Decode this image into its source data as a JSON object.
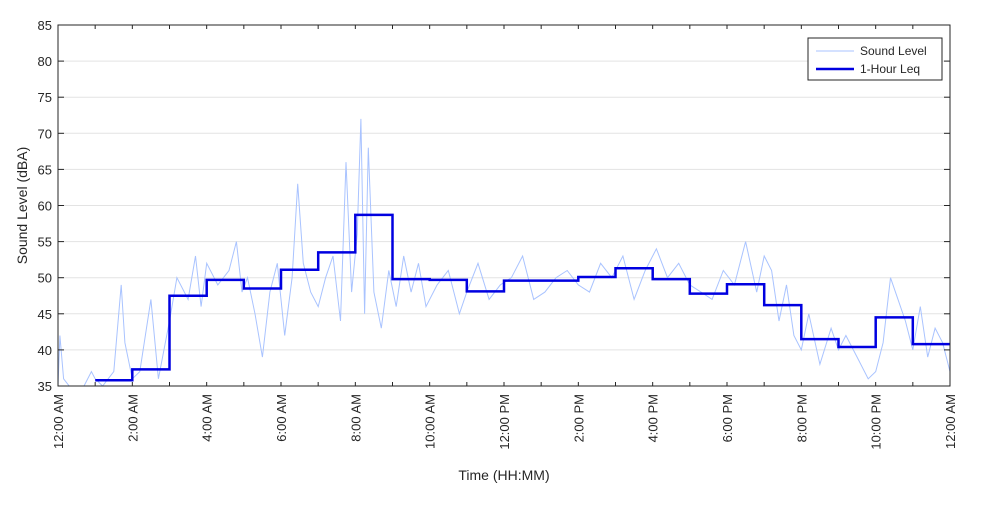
{
  "chart_data": {
    "type": "line",
    "xlabel": "Time (HH:MM)",
    "ylabel": "Sound Level (dBA)",
    "xlim": [
      0,
      24
    ],
    "ylim": [
      35,
      85
    ],
    "grid": "horizontal",
    "legend_position": "top-right",
    "x_ticks": [
      {
        "value": 0,
        "label": "12:00 AM"
      },
      {
        "value": 2,
        "label": "2:00 AM"
      },
      {
        "value": 4,
        "label": "4:00 AM"
      },
      {
        "value": 6,
        "label": "6:00 AM"
      },
      {
        "value": 8,
        "label": "8:00 AM"
      },
      {
        "value": 10,
        "label": "10:00 AM"
      },
      {
        "value": 12,
        "label": "12:00 PM"
      },
      {
        "value": 14,
        "label": "2:00 PM"
      },
      {
        "value": 16,
        "label": "4:00 PM"
      },
      {
        "value": 18,
        "label": "6:00 PM"
      },
      {
        "value": 20,
        "label": "8:00 PM"
      },
      {
        "value": 22,
        "label": "10:00 PM"
      },
      {
        "value": 24,
        "label": "12:00 AM"
      }
    ],
    "y_ticks": [
      35,
      40,
      45,
      50,
      55,
      60,
      65,
      70,
      75,
      80,
      85
    ],
    "series": [
      {
        "name": "Sound Level",
        "color": "#a9c3ff",
        "style": "thin-line",
        "x": [
          0,
          0.05,
          0.15,
          0.3,
          0.5,
          0.7,
          0.9,
          1.0,
          1.2,
          1.5,
          1.7,
          1.8,
          2.0,
          2.2,
          2.5,
          2.7,
          3.0,
          3.2,
          3.5,
          3.7,
          3.85,
          4.0,
          4.3,
          4.6,
          4.8,
          4.95,
          5.1,
          5.3,
          5.5,
          5.7,
          5.9,
          6.1,
          6.3,
          6.45,
          6.6,
          6.8,
          7.0,
          7.2,
          7.4,
          7.6,
          7.75,
          7.9,
          8.05,
          8.15,
          8.25,
          8.35,
          8.5,
          8.7,
          8.9,
          9.1,
          9.3,
          9.5,
          9.7,
          9.9,
          10.2,
          10.5,
          10.8,
          11.0,
          11.3,
          11.6,
          11.9,
          12.2,
          12.5,
          12.8,
          13.1,
          13.4,
          13.7,
          14.0,
          14.3,
          14.6,
          14.9,
          15.2,
          15.5,
          15.8,
          16.1,
          16.4,
          16.7,
          17.0,
          17.3,
          17.6,
          17.9,
          18.2,
          18.5,
          18.8,
          19.0,
          19.2,
          19.4,
          19.6,
          19.8,
          20.0,
          20.2,
          20.5,
          20.8,
          21.0,
          21.2,
          21.5,
          21.8,
          22.0,
          22.2,
          22.4,
          22.6,
          22.8,
          23.0,
          23.2,
          23.4,
          23.6,
          23.8,
          24.0
        ],
        "y": [
          35,
          42,
          36,
          35,
          35,
          35,
          37,
          36,
          35,
          37,
          49,
          41,
          36,
          37,
          47,
          36,
          44,
          50,
          47,
          53,
          46,
          52,
          49,
          51,
          55,
          48,
          50,
          45,
          39,
          48,
          52,
          42,
          50,
          63,
          52,
          48,
          46,
          50,
          53,
          44,
          66,
          48,
          56,
          72,
          45,
          68,
          48,
          43,
          51,
          46,
          53,
          48,
          52,
          46,
          49,
          51,
          45,
          48,
          52,
          47,
          49,
          50,
          53,
          47,
          48,
          50,
          51,
          49,
          48,
          52,
          50,
          53,
          47,
          51,
          54,
          50,
          52,
          49,
          48,
          47,
          51,
          49,
          55,
          48,
          53,
          51,
          44,
          49,
          42,
          40,
          45,
          38,
          43,
          40,
          42,
          39,
          36,
          37,
          41,
          50,
          47,
          44,
          40,
          46,
          39,
          43,
          41,
          37
        ]
      },
      {
        "name": "1-Hour Leq",
        "color": "#0000e0",
        "style": "step",
        "hour_start": [
          1,
          2,
          3,
          4,
          5,
          6,
          7,
          8,
          9,
          10,
          11,
          12,
          13,
          14,
          15,
          16,
          17,
          18,
          19,
          20,
          21,
          22,
          23
        ],
        "values": [
          35.8,
          37.3,
          47.5,
          49.7,
          48.5,
          51.1,
          53.5,
          58.7,
          49.8,
          49.7,
          48.1,
          49.6,
          49.6,
          50.1,
          51.3,
          49.8,
          47.8,
          49.1,
          46.2,
          41.5,
          40.4,
          44.5,
          40.8
        ]
      }
    ]
  }
}
